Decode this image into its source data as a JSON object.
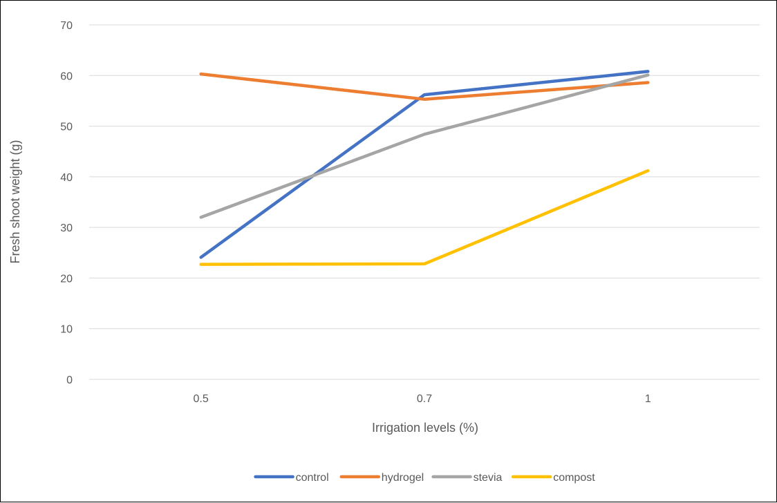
{
  "chart_data": {
    "type": "line",
    "title": "",
    "xlabel": "Irrigation levels (%)",
    "ylabel": "Fresh shoot weight (g)",
    "categories": [
      "0.5",
      "0.7",
      "1"
    ],
    "ylim": [
      0,
      70
    ],
    "yticks": [
      "0",
      "10",
      "20",
      "30",
      "40",
      "50",
      "60",
      "70"
    ],
    "grid": true,
    "legend_position": "bottom",
    "series": [
      {
        "name": "control",
        "color": "#4472C4",
        "values": [
          24.1,
          56.2,
          60.8
        ]
      },
      {
        "name": "hydrogel",
        "color": "#ED7D31",
        "values": [
          60.3,
          55.3,
          58.6
        ]
      },
      {
        "name": "stevia",
        "color": "#A5A5A5",
        "values": [
          32.0,
          48.4,
          60.1
        ]
      },
      {
        "name": "compost",
        "color": "#FFC000",
        "values": [
          22.7,
          22.8,
          41.2
        ]
      }
    ]
  }
}
